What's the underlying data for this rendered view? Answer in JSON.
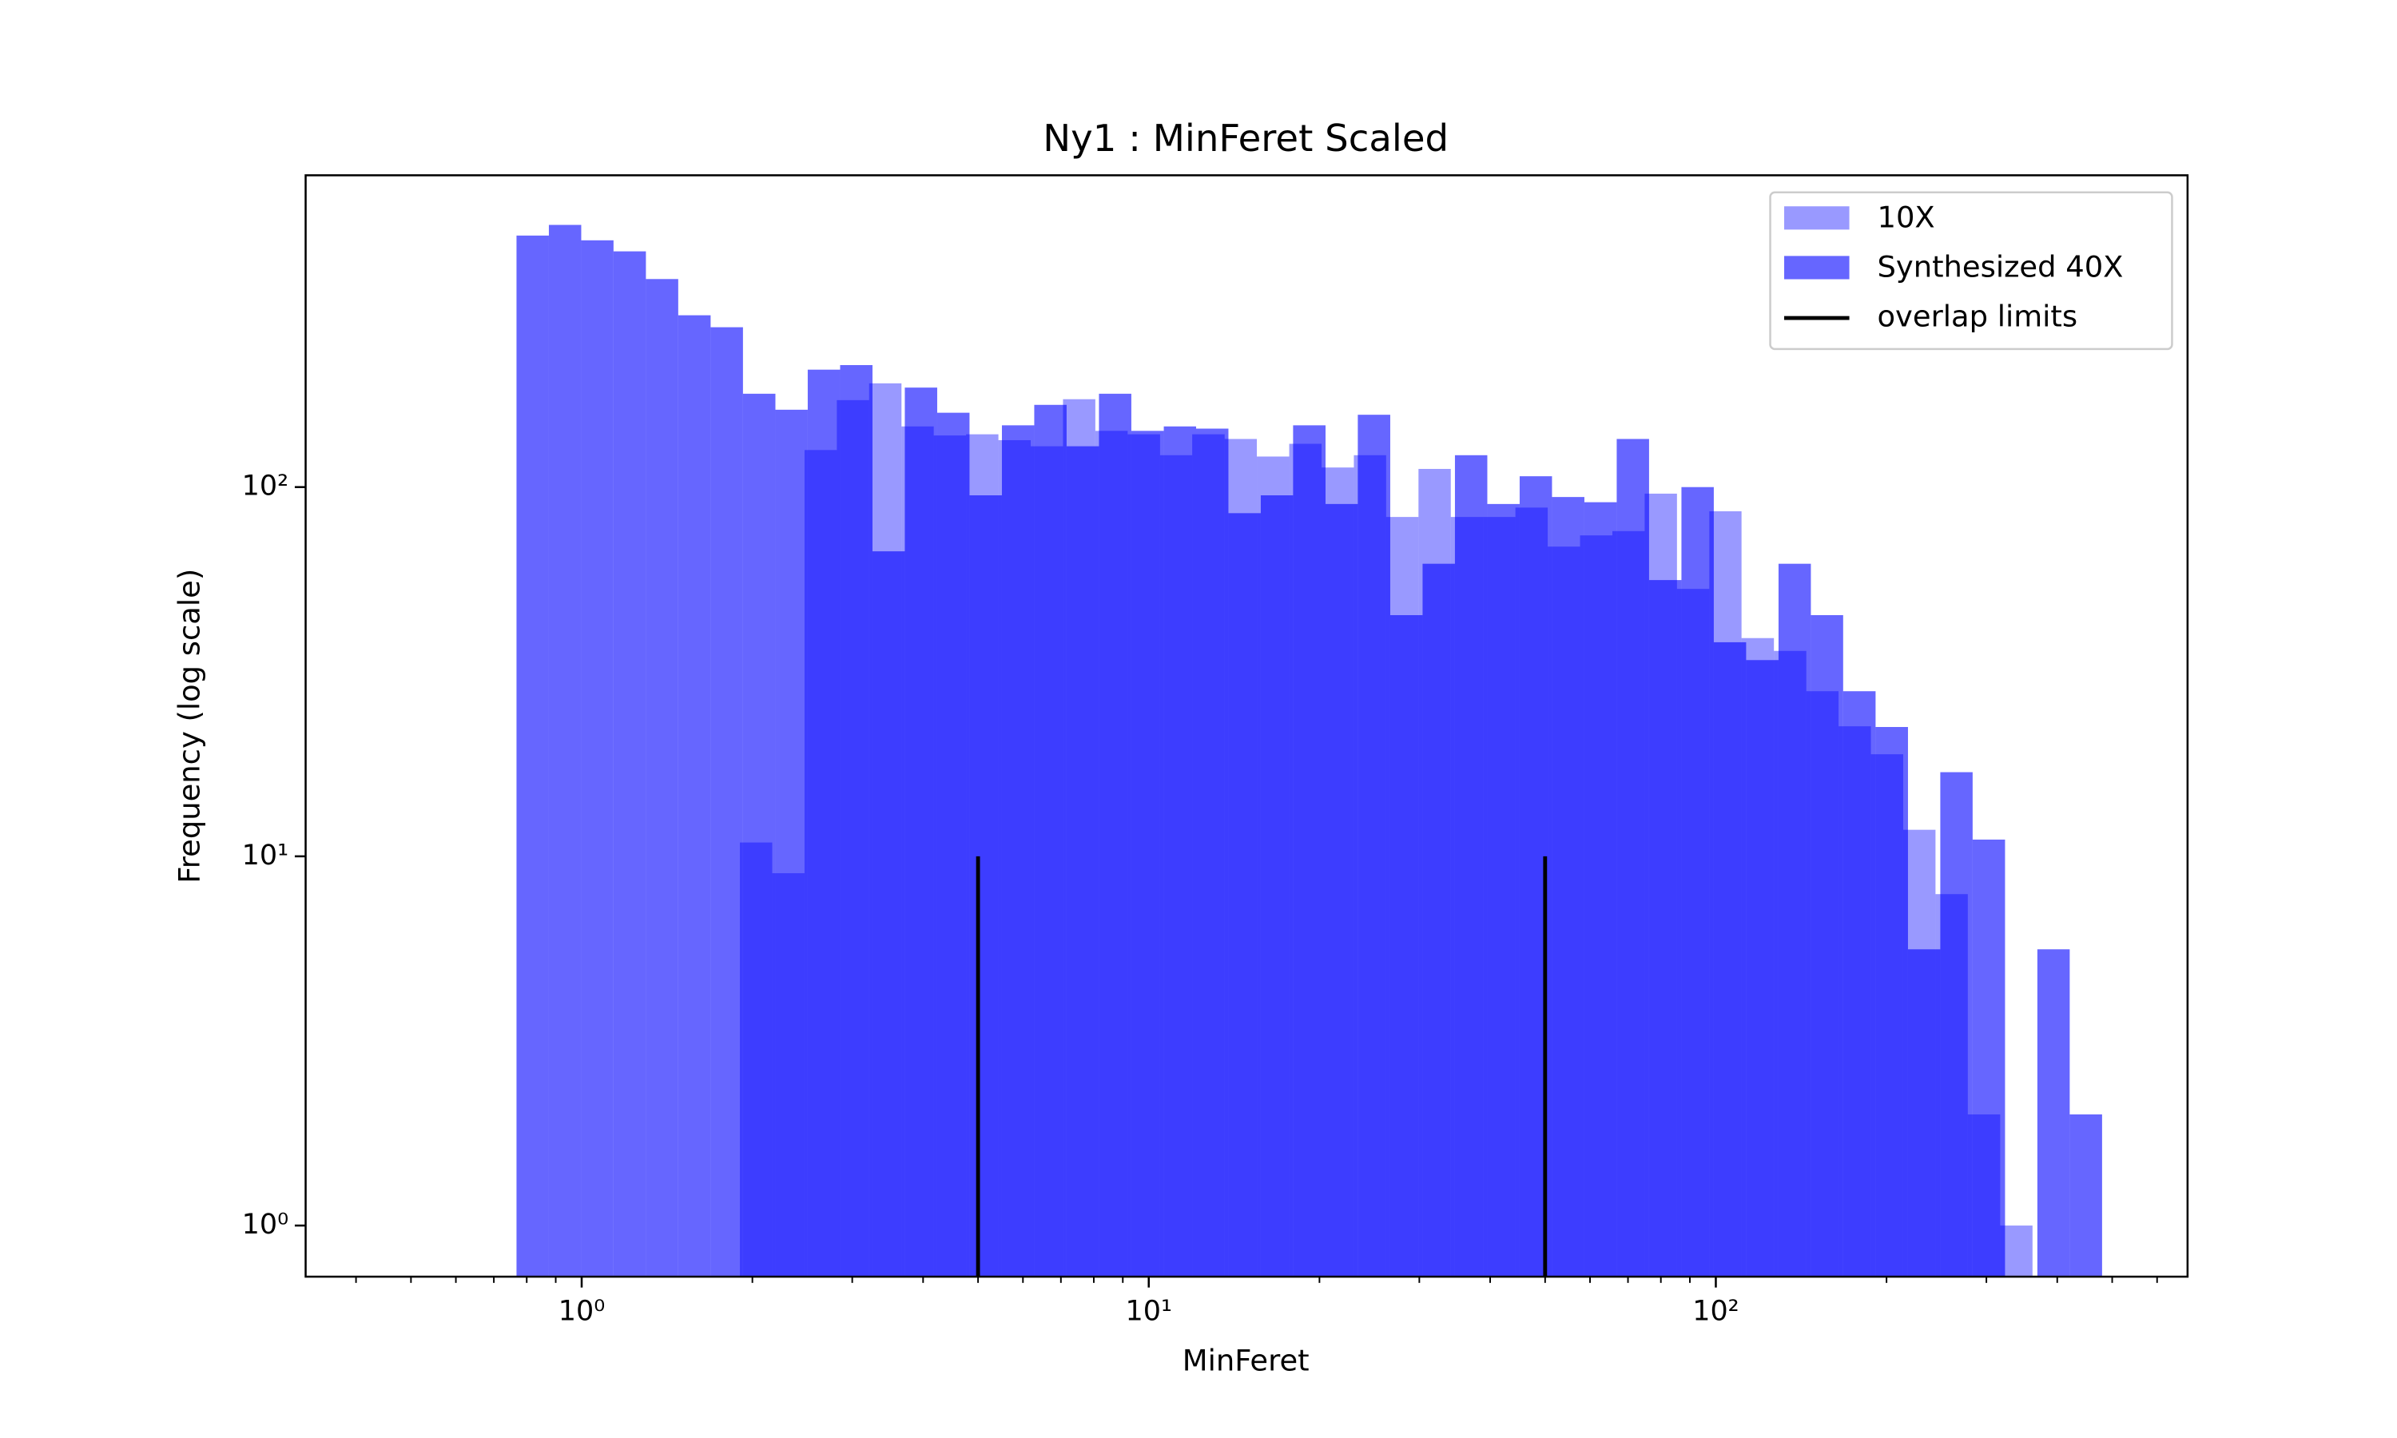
{
  "chart_data": {
    "type": "histogram",
    "title": "Ny1 : MinFeret Scaled",
    "xlabel": "MinFeret",
    "ylabel": "Frequency (log scale)",
    "xscale": "log",
    "yscale": "log",
    "xlim": [
      0.326,
      679
    ],
    "ylim": [
      0.727,
      699
    ],
    "xticks": [
      {
        "value": 1,
        "label": "10⁰"
      },
      {
        "value": 10,
        "label": "10¹"
      },
      {
        "value": 100,
        "label": "10²"
      }
    ],
    "xminorticks": [
      0.4,
      0.5,
      0.6,
      0.7,
      0.8,
      0.9,
      2,
      3,
      4,
      5,
      6,
      7,
      8,
      9,
      20,
      30,
      40,
      50,
      60,
      70,
      80,
      90,
      200,
      300,
      400,
      500,
      600
    ],
    "yticks": [
      {
        "value": 1,
        "label": "10⁰"
      },
      {
        "value": 10,
        "label": "10¹"
      },
      {
        "value": 100,
        "label": "10²"
      }
    ],
    "legend": "upper right",
    "series": [
      {
        "name": "10X",
        "color": "#0000ff",
        "alpha": 0.4,
        "bins": [
          1.901,
          2.168,
          2.472,
          2.818,
          3.213,
          3.664,
          4.177,
          4.763,
          5.431,
          6.192,
          7.06,
          8.05,
          9.179,
          10.47,
          11.93,
          13.61,
          15.51,
          17.69,
          20.17,
          23.0,
          26.22,
          29.9,
          34.09,
          38.87,
          44.32,
          50.53,
          57.62,
          65.7,
          74.91,
          85.41,
          97.39,
          111.0,
          126.6,
          144.4,
          164.6,
          187.7,
          214.0,
          244.0,
          278.2,
          317.3,
          361.8
        ],
        "values": [
          10.9,
          9.0,
          126,
          172,
          191,
          146,
          138,
          139,
          134,
          129,
          173,
          142,
          139,
          122,
          139,
          135,
          121,
          131,
          113,
          122,
          83,
          112,
          83,
          83,
          88,
          69,
          74,
          76,
          96,
          53,
          86,
          39,
          36,
          28,
          22.5,
          18.9,
          11.8,
          7.9,
          2.0,
          1
        ]
      },
      {
        "name": "Synthesized 40X",
        "color": "#0000ff",
        "alpha": 0.6,
        "bins": [
          0.7675,
          0.8753,
          0.9982,
          1.138,
          1.298,
          1.48,
          1.688,
          1.925,
          2.196,
          2.504,
          2.856,
          3.257,
          3.714,
          4.236,
          4.83,
          5.509,
          6.282,
          7.164,
          8.17,
          9.317,
          10.63,
          12.12,
          13.82,
          15.76,
          17.97,
          20.5,
          23.37,
          26.66,
          30.4,
          34.67,
          39.54,
          45.09,
          51.42,
          58.64,
          66.87,
          76.26,
          86.97,
          99.18,
          113.1,
          129.0,
          147.1,
          167.7,
          191.3,
          218.2,
          248.8,
          283.7,
          323.6,
          369.0,
          420.8,
          479.9
        ],
        "values": [
          480,
          513,
          466,
          435,
          366,
          292,
          271,
          179,
          162,
          208,
          214,
          67,
          186,
          159,
          95,
          147,
          167,
          129,
          179,
          142,
          146,
          144,
          85,
          95,
          147,
          90,
          157,
          45,
          62,
          122,
          90,
          107,
          94,
          91,
          135,
          56,
          100,
          38,
          34,
          62,
          45,
          28,
          22.4,
          5.6,
          16.9,
          11.1,
          null,
          5.6,
          2.0
        ]
      }
    ],
    "vlines": {
      "name": "overlap limits",
      "color": "#000000",
      "x": [
        5,
        50
      ],
      "ymax": 10
    }
  }
}
